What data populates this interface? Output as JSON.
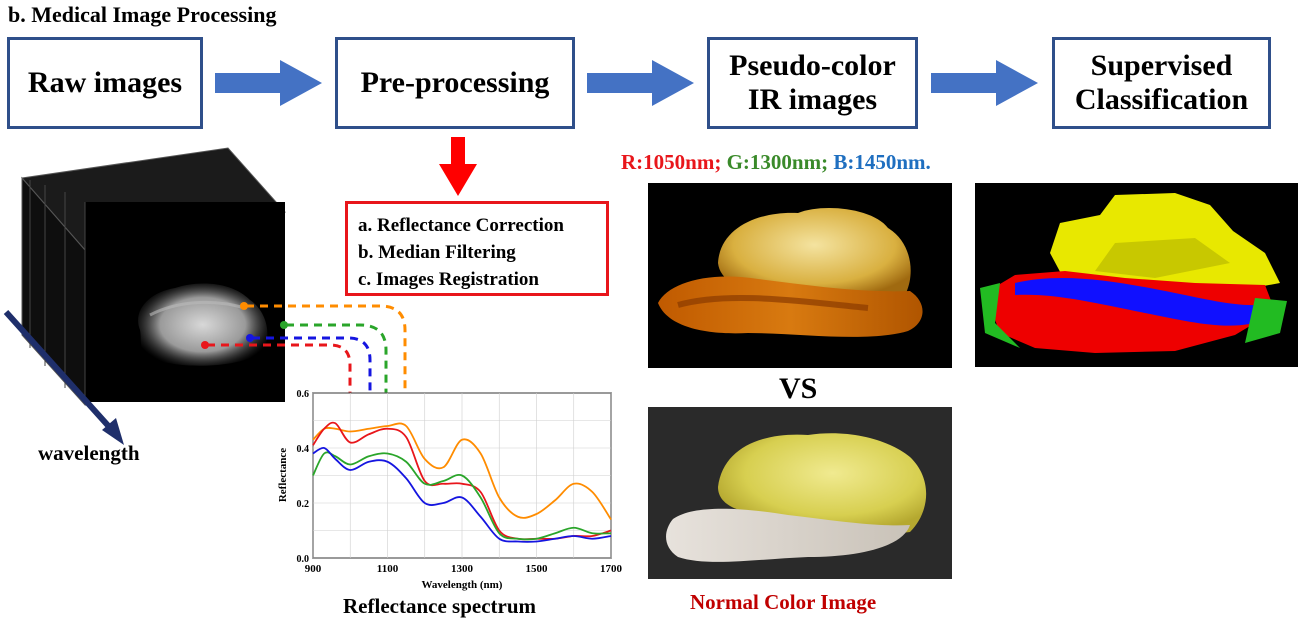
{
  "title": "b. Medical Image Processing",
  "pipeline": {
    "raw": "Raw images",
    "pre": "Pre-processing",
    "pseudo_line1": "Pseudo-color",
    "pseudo_line2": "IR images",
    "sup_line1": "Supervised",
    "sup_line2": "Classification"
  },
  "preprocessing_steps": [
    "a. Reflectance Correction",
    "b. Median Filtering",
    "c. Images Registration"
  ],
  "channels": {
    "r": "R:1050nm;",
    "g": "G:1300nm;",
    "b": "B:1450nm.",
    "colors": {
      "r": "#e8161b",
      "g": "#3a8a2a",
      "b": "#1f6fc0"
    }
  },
  "labels": {
    "vs": "VS",
    "normal_color": "Normal Color Image",
    "wavelength": "wavelength",
    "spectrum_caption": "Reflectance spectrum"
  },
  "colors": {
    "box_border": "#2f4f8a",
    "arrow_blue": "#4472c4",
    "arrow_red": "#ff0000"
  },
  "chart_data": {
    "type": "line",
    "xlabel": "Wavelength (nm)",
    "ylabel": "Reflectance",
    "xlim": [
      900,
      1700
    ],
    "ylim": [
      0,
      0.6
    ],
    "xticks": [
      900,
      1100,
      1300,
      1500,
      1700
    ],
    "yticks": [
      0.0,
      0.2,
      0.4,
      0.6
    ],
    "grid": true,
    "x": [
      900,
      930,
      960,
      1000,
      1050,
      1100,
      1150,
      1200,
      1250,
      1300,
      1350,
      1400,
      1450,
      1500,
      1550,
      1600,
      1650,
      1700
    ],
    "series": [
      {
        "color": "#ff8c00",
        "values": [
          0.43,
          0.47,
          0.47,
          0.46,
          0.47,
          0.48,
          0.48,
          0.36,
          0.33,
          0.43,
          0.38,
          0.22,
          0.15,
          0.16,
          0.21,
          0.27,
          0.24,
          0.14
        ]
      },
      {
        "color": "#e8161b",
        "values": [
          0.41,
          0.47,
          0.49,
          0.42,
          0.45,
          0.47,
          0.44,
          0.28,
          0.27,
          0.27,
          0.24,
          0.1,
          0.07,
          0.07,
          0.07,
          0.08,
          0.08,
          0.1
        ]
      },
      {
        "color": "#2aa52a",
        "values": [
          0.3,
          0.38,
          0.37,
          0.34,
          0.37,
          0.38,
          0.35,
          0.27,
          0.28,
          0.3,
          0.22,
          0.09,
          0.07,
          0.07,
          0.09,
          0.11,
          0.09,
          0.09
        ]
      },
      {
        "color": "#1515e0",
        "values": [
          0.38,
          0.4,
          0.36,
          0.32,
          0.35,
          0.35,
          0.29,
          0.2,
          0.2,
          0.22,
          0.15,
          0.07,
          0.06,
          0.06,
          0.07,
          0.08,
          0.07,
          0.08
        ]
      }
    ],
    "dashed_markers": [
      {
        "color": "#e8161b",
        "x": 1000
      },
      {
        "color": "#1515e0",
        "x": 1050
      },
      {
        "color": "#2aa52a",
        "x": 1100
      },
      {
        "color": "#ff8c00",
        "x": 1150
      }
    ]
  }
}
